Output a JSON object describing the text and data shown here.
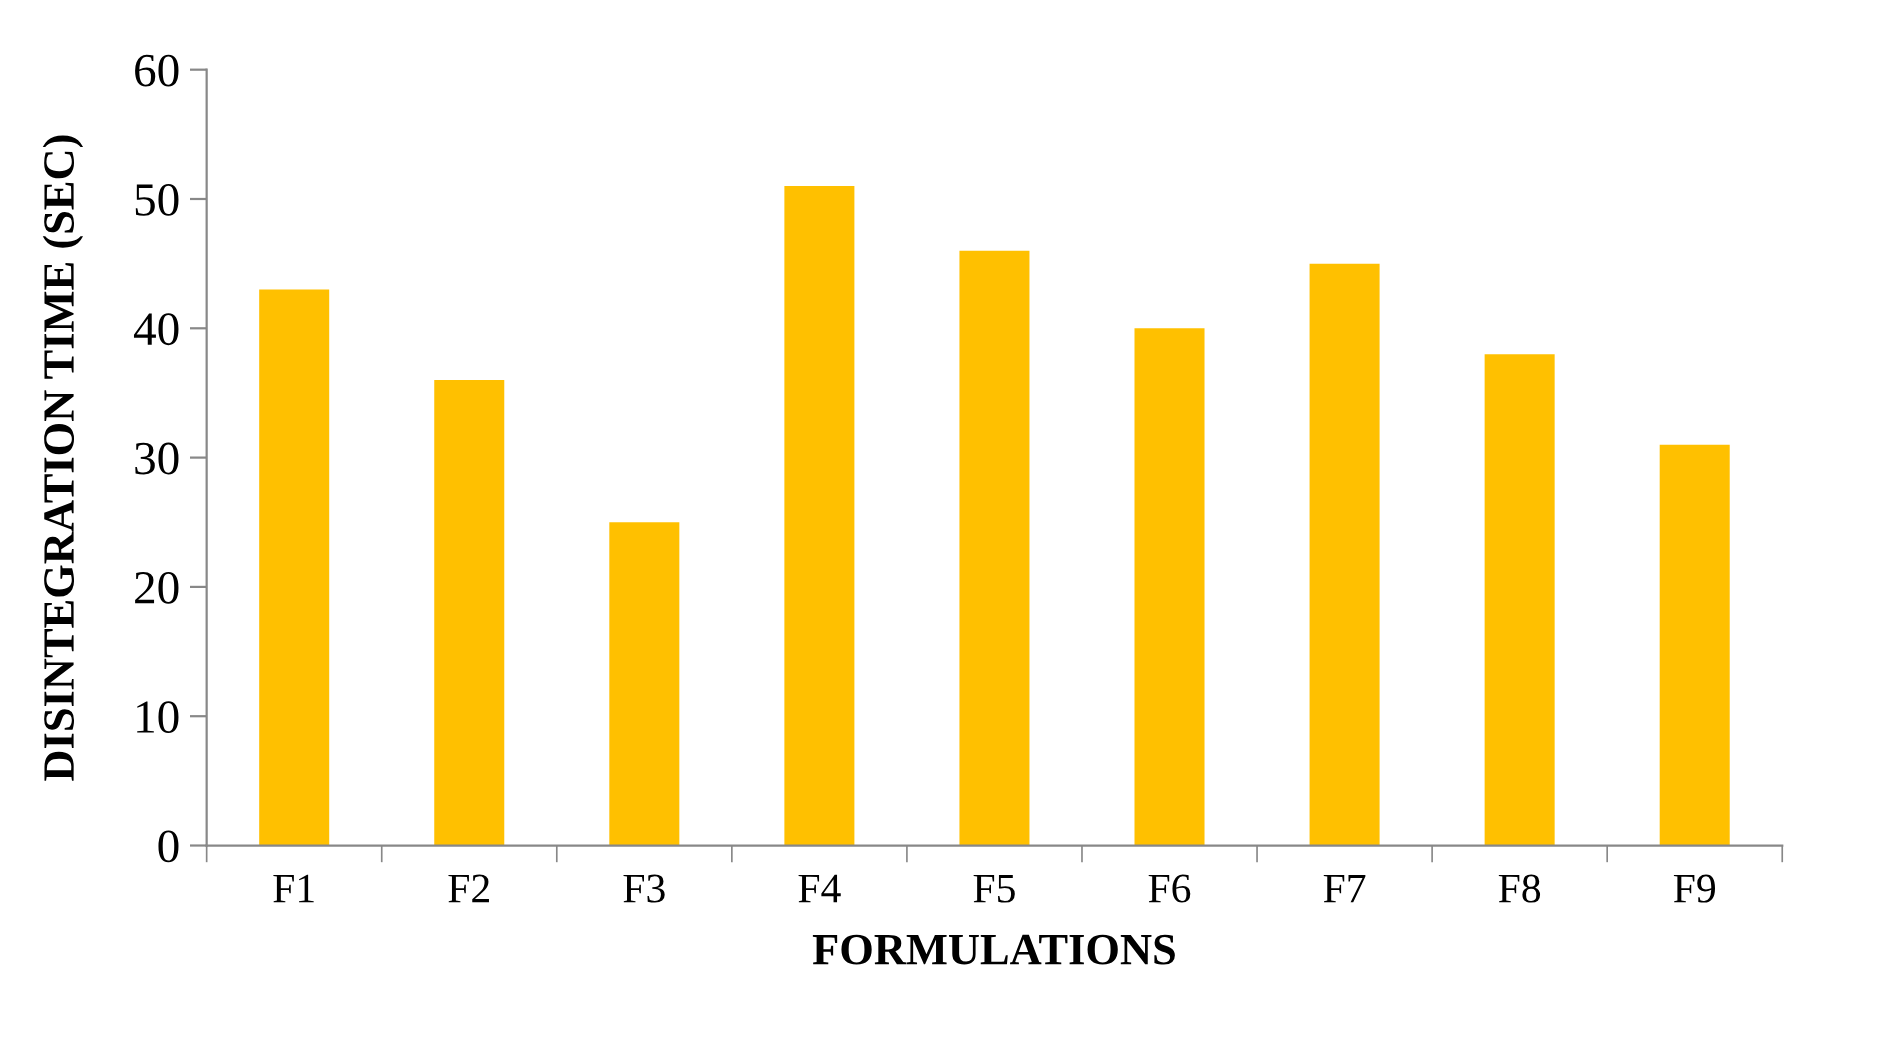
{
  "chart_data": {
    "type": "bar",
    "xlabel": "FORMULATIONS",
    "ylabel": "DISINTEGRATION TIME (SEC)",
    "categories": [
      "F1",
      "F2",
      "F3",
      "F4",
      "F5",
      "F6",
      "F7",
      "F8",
      "F9"
    ],
    "values": [
      43,
      36,
      25,
      51,
      46,
      40,
      45,
      38,
      31
    ],
    "color": "#ffc000",
    "ylim": [
      0,
      60
    ],
    "yticks": [
      0,
      10,
      20,
      30,
      40,
      50,
      60
    ],
    "grid": false,
    "legend": false
  }
}
